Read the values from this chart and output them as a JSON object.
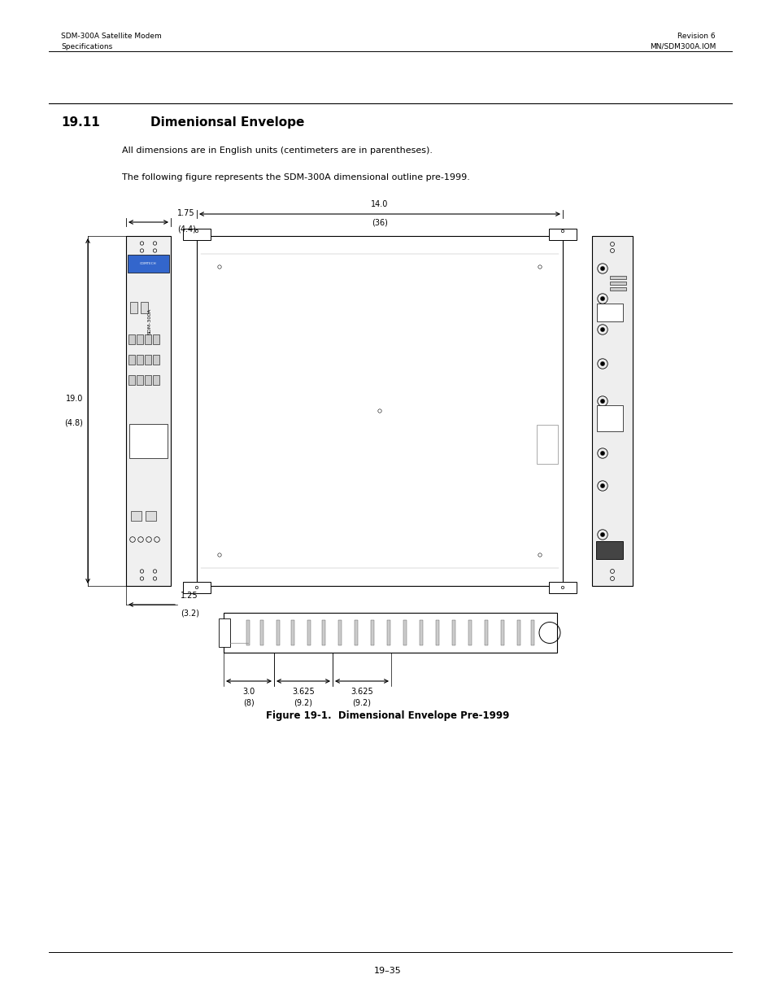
{
  "page_width": 9.54,
  "page_height": 12.35,
  "bg_color": "#ffffff",
  "header_left_line1": "SDM-300A Satellite Modem",
  "header_left_line2": "Specifications",
  "header_right_line1": "Revision 6",
  "header_right_line2": "MN/SDM300A.IOM",
  "section_number": "19.11",
  "section_title": "Dimenionsal Envelope",
  "para1": "All dimensions are in English units (centimeters are in parentheses).",
  "para2": "The following figure represents the SDM-300A dimensional outline pre-1999.",
  "figure_caption": "Figure 19-1.  Dimensional Envelope Pre-1999",
  "footer_text": "19–35"
}
